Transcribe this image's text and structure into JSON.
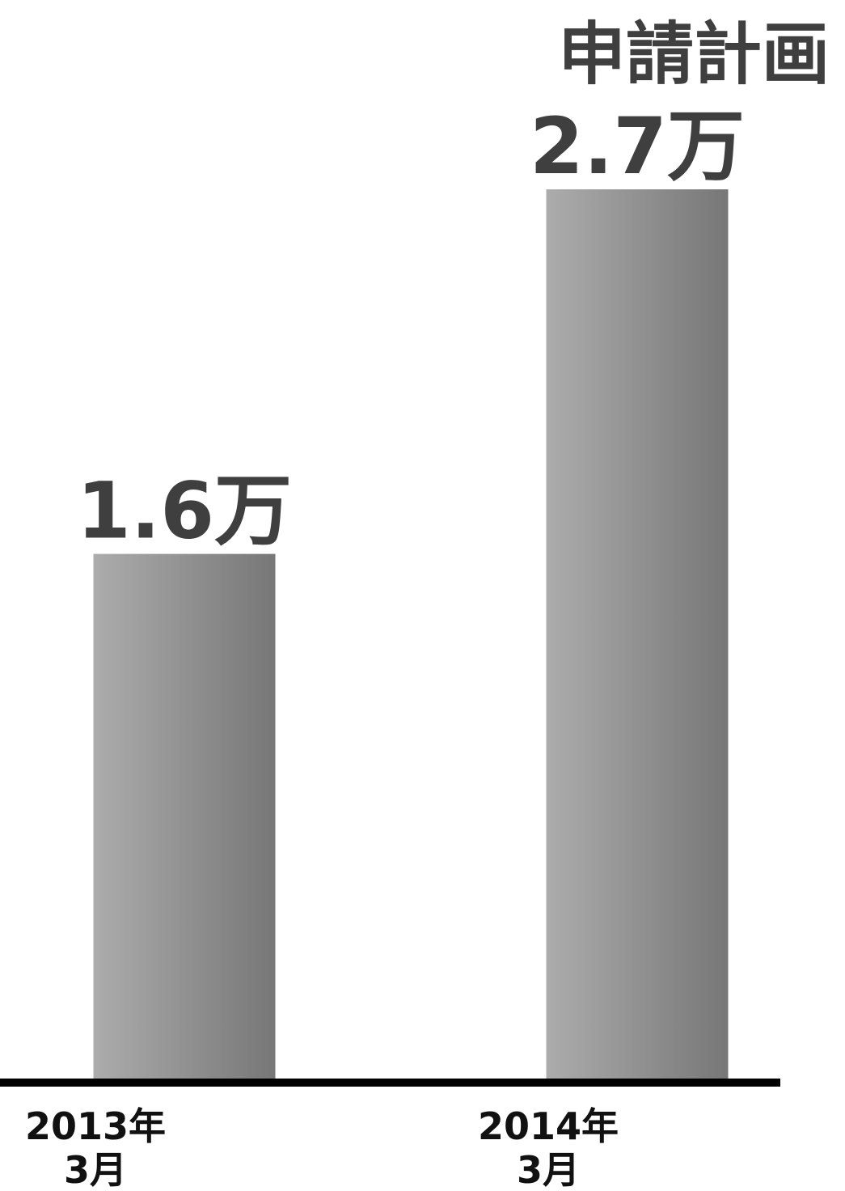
{
  "chart_data": {
    "type": "bar",
    "title": "",
    "xlabel": "",
    "ylabel": "",
    "categories": [
      {
        "line1": "2013年",
        "line2": "3月"
      },
      {
        "line1": "2014年",
        "line2": "3月"
      }
    ],
    "values": [
      1.6,
      2.7
    ],
    "value_labels": [
      "1.6万",
      "2.7万"
    ],
    "annotations": [
      "",
      "申請計画"
    ],
    "unit": "万",
    "ylim": [
      0,
      2.7
    ],
    "grid": false,
    "legend": "none",
    "colors": {
      "bar_light": "#acacac",
      "bar_dark": "#777777",
      "axis": "#000000",
      "value_text": "#3f3f3f",
      "tick_text": "#111111"
    }
  }
}
